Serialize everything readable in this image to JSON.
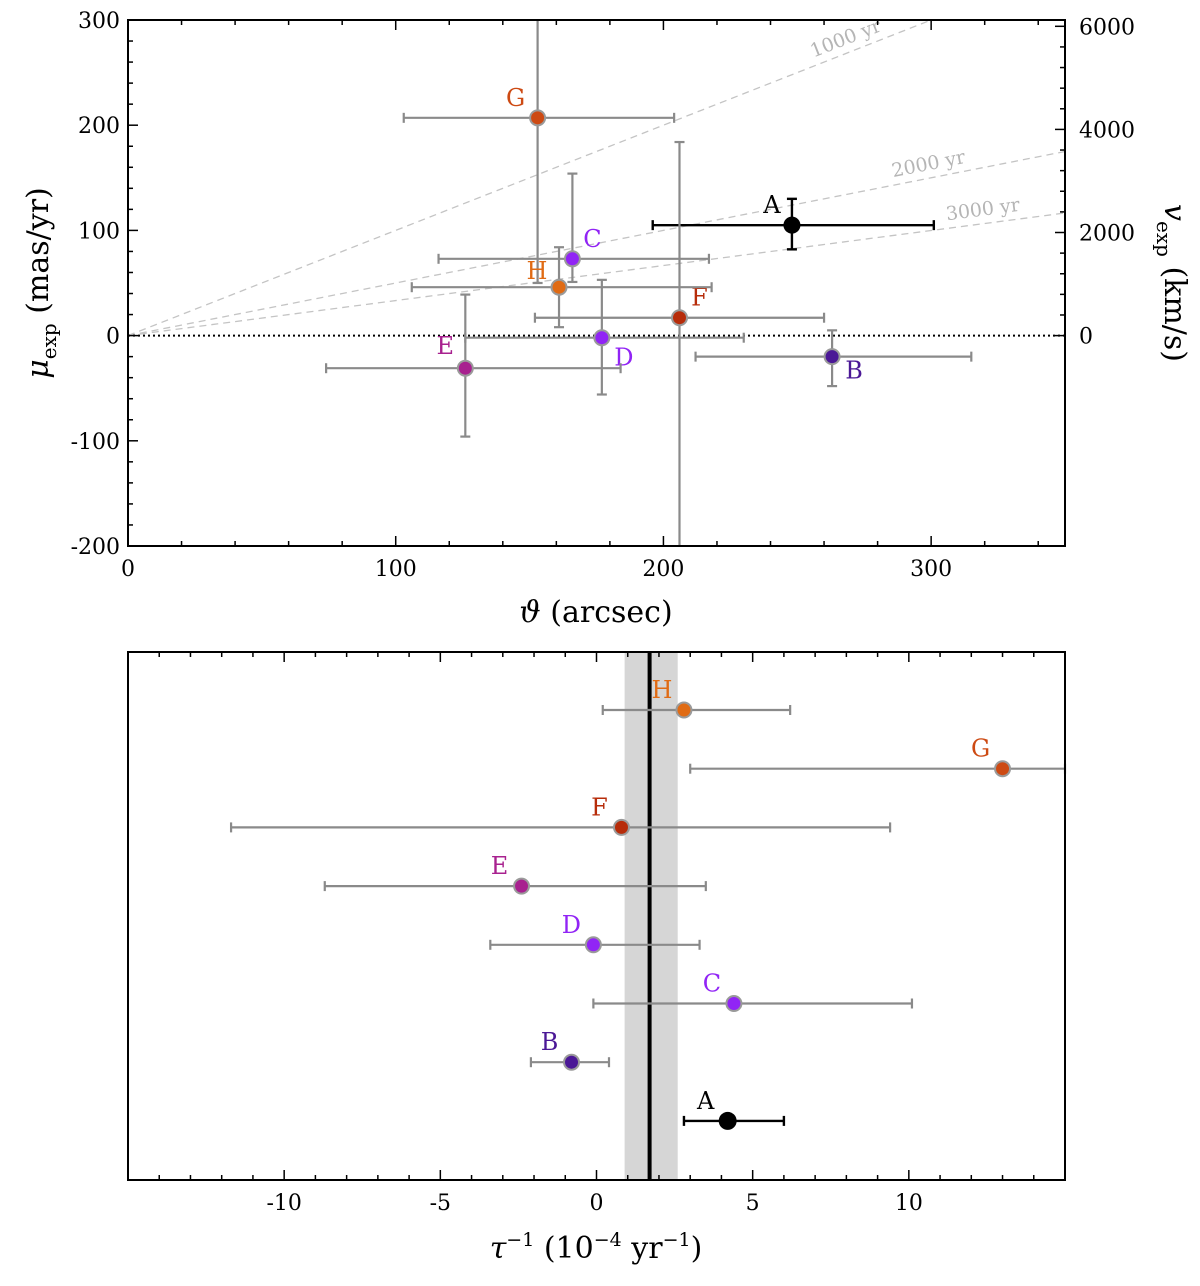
{
  "chart_data": [
    {
      "type": "scatter",
      "xlabel": "ϑ (arcsec)",
      "ylabel": "μ_exp (mas/yr)",
      "y2label": "v_exp (km/s)",
      "xlim": [
        0,
        350
      ],
      "ylim": [
        -200,
        300
      ],
      "xticks": [
        0,
        100,
        200,
        300
      ],
      "yticks": [
        -200,
        -100,
        0,
        100,
        200,
        300
      ],
      "y2ticks": [
        {
          "label": "0",
          "mu": 0
        },
        {
          "label": "2000",
          "mu": 98
        },
        {
          "label": "4000",
          "mu": 196
        },
        {
          "label": "6000",
          "mu": 294
        }
      ],
      "zero_line": true,
      "age_lines": [
        {
          "label": "1000 yr",
          "slope": 1.0
        },
        {
          "label": "2000 yr",
          "slope": 0.5
        },
        {
          "label": "3000 yr",
          "slope": 0.333
        }
      ],
      "points": [
        {
          "name": "A",
          "x": 248,
          "y": 105,
          "xerr": [
            52,
            53
          ],
          "yerr": [
            23,
            25
          ],
          "color": "#000000"
        },
        {
          "name": "B",
          "x": 263,
          "y": -20,
          "xerr": [
            51,
            52
          ],
          "yerr": [
            28,
            25
          ],
          "color": "#4b1896"
        },
        {
          "name": "C",
          "x": 166,
          "y": 73,
          "xerr": [
            50,
            51
          ],
          "yerr": [
            22,
            81
          ],
          "color": "#9124f5"
        },
        {
          "name": "D",
          "x": 177,
          "y": -2,
          "xerr": [
            51,
            53
          ],
          "yerr": [
            54,
            55
          ],
          "color": "#9124f5"
        },
        {
          "name": "E",
          "x": 126,
          "y": -31,
          "xerr": [
            52,
            58
          ],
          "yerr": [
            65,
            70
          ],
          "color": "#a8218f"
        },
        {
          "name": "F",
          "x": 206,
          "y": 17,
          "xerr": [
            54,
            54
          ],
          "yerr": [
            240,
            167
          ],
          "color": "#b72c0a"
        },
        {
          "name": "G",
          "x": 153,
          "y": 207,
          "xerr": [
            50,
            51
          ],
          "yerr": [
            157,
            120
          ],
          "color": "#cd4a13"
        },
        {
          "name": "H",
          "x": 161,
          "y": 46,
          "xerr": [
            55,
            57
          ],
          "yerr": [
            38,
            38
          ],
          "color": "#e06b14"
        }
      ]
    },
    {
      "type": "scatter",
      "xlabel": "τ^-1 (10^-4 yr^-1)",
      "xlim": [
        -15,
        15
      ],
      "xticks": [
        -10,
        -5,
        0,
        5,
        10
      ],
      "band": {
        "center": 1.7,
        "low": 0.9,
        "high": 2.6
      },
      "points": [
        {
          "name": "H",
          "x": 2.8,
          "xerr": [
            2.6,
            3.4
          ],
          "color": "#e06b14"
        },
        {
          "name": "G",
          "x": 13.0,
          "xerr": [
            10.0,
            2.0
          ],
          "color": "#cd4a13"
        },
        {
          "name": "F",
          "x": 0.8,
          "xerr": [
            12.5,
            8.6
          ],
          "color": "#b72c0a"
        },
        {
          "name": "E",
          "x": -2.4,
          "xerr": [
            6.3,
            5.9
          ],
          "color": "#a8218f"
        },
        {
          "name": "D",
          "x": -0.1,
          "xerr": [
            3.3,
            3.4
          ],
          "color": "#9124f5"
        },
        {
          "name": "C",
          "x": 4.4,
          "xerr": [
            4.5,
            5.7
          ],
          "color": "#9124f5"
        },
        {
          "name": "B",
          "x": -0.8,
          "xerr": [
            1.3,
            1.2
          ],
          "color": "#4b1896"
        },
        {
          "name": "A",
          "x": 4.2,
          "xerr": [
            1.4,
            1.8
          ],
          "color": "#000000"
        }
      ]
    }
  ]
}
